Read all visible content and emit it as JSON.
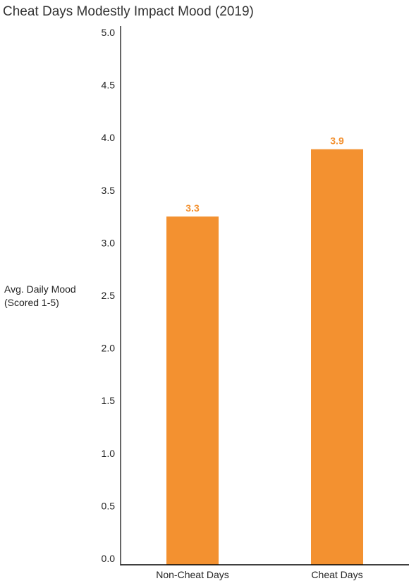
{
  "chart_data": {
    "type": "bar",
    "title": "Cheat Days Modestly Impact Mood (2019)",
    "ylabel": "Avg. Daily Mood\n(Scored 1-5)",
    "xlabel": "",
    "categories": [
      "Non-Cheat Days",
      "Cheat Days"
    ],
    "values": [
      3.25,
      3.89
    ],
    "data_labels": [
      "3.3",
      "3.9"
    ],
    "ylim": [
      0,
      5
    ],
    "yticks": [
      0,
      0.5,
      1,
      1.5,
      2,
      2.5,
      3,
      3.5,
      4,
      4.5,
      5
    ],
    "ytick_labels": [
      "0.0",
      "0.5",
      "1.0",
      "1.5",
      "2.0",
      "2.5",
      "3.0",
      "3.5",
      "4.0",
      "4.5",
      "5.0"
    ],
    "grid": false,
    "legend": "none",
    "bar_color": "#f39130",
    "label_color": "#f39130",
    "axis_color": "#000000"
  }
}
